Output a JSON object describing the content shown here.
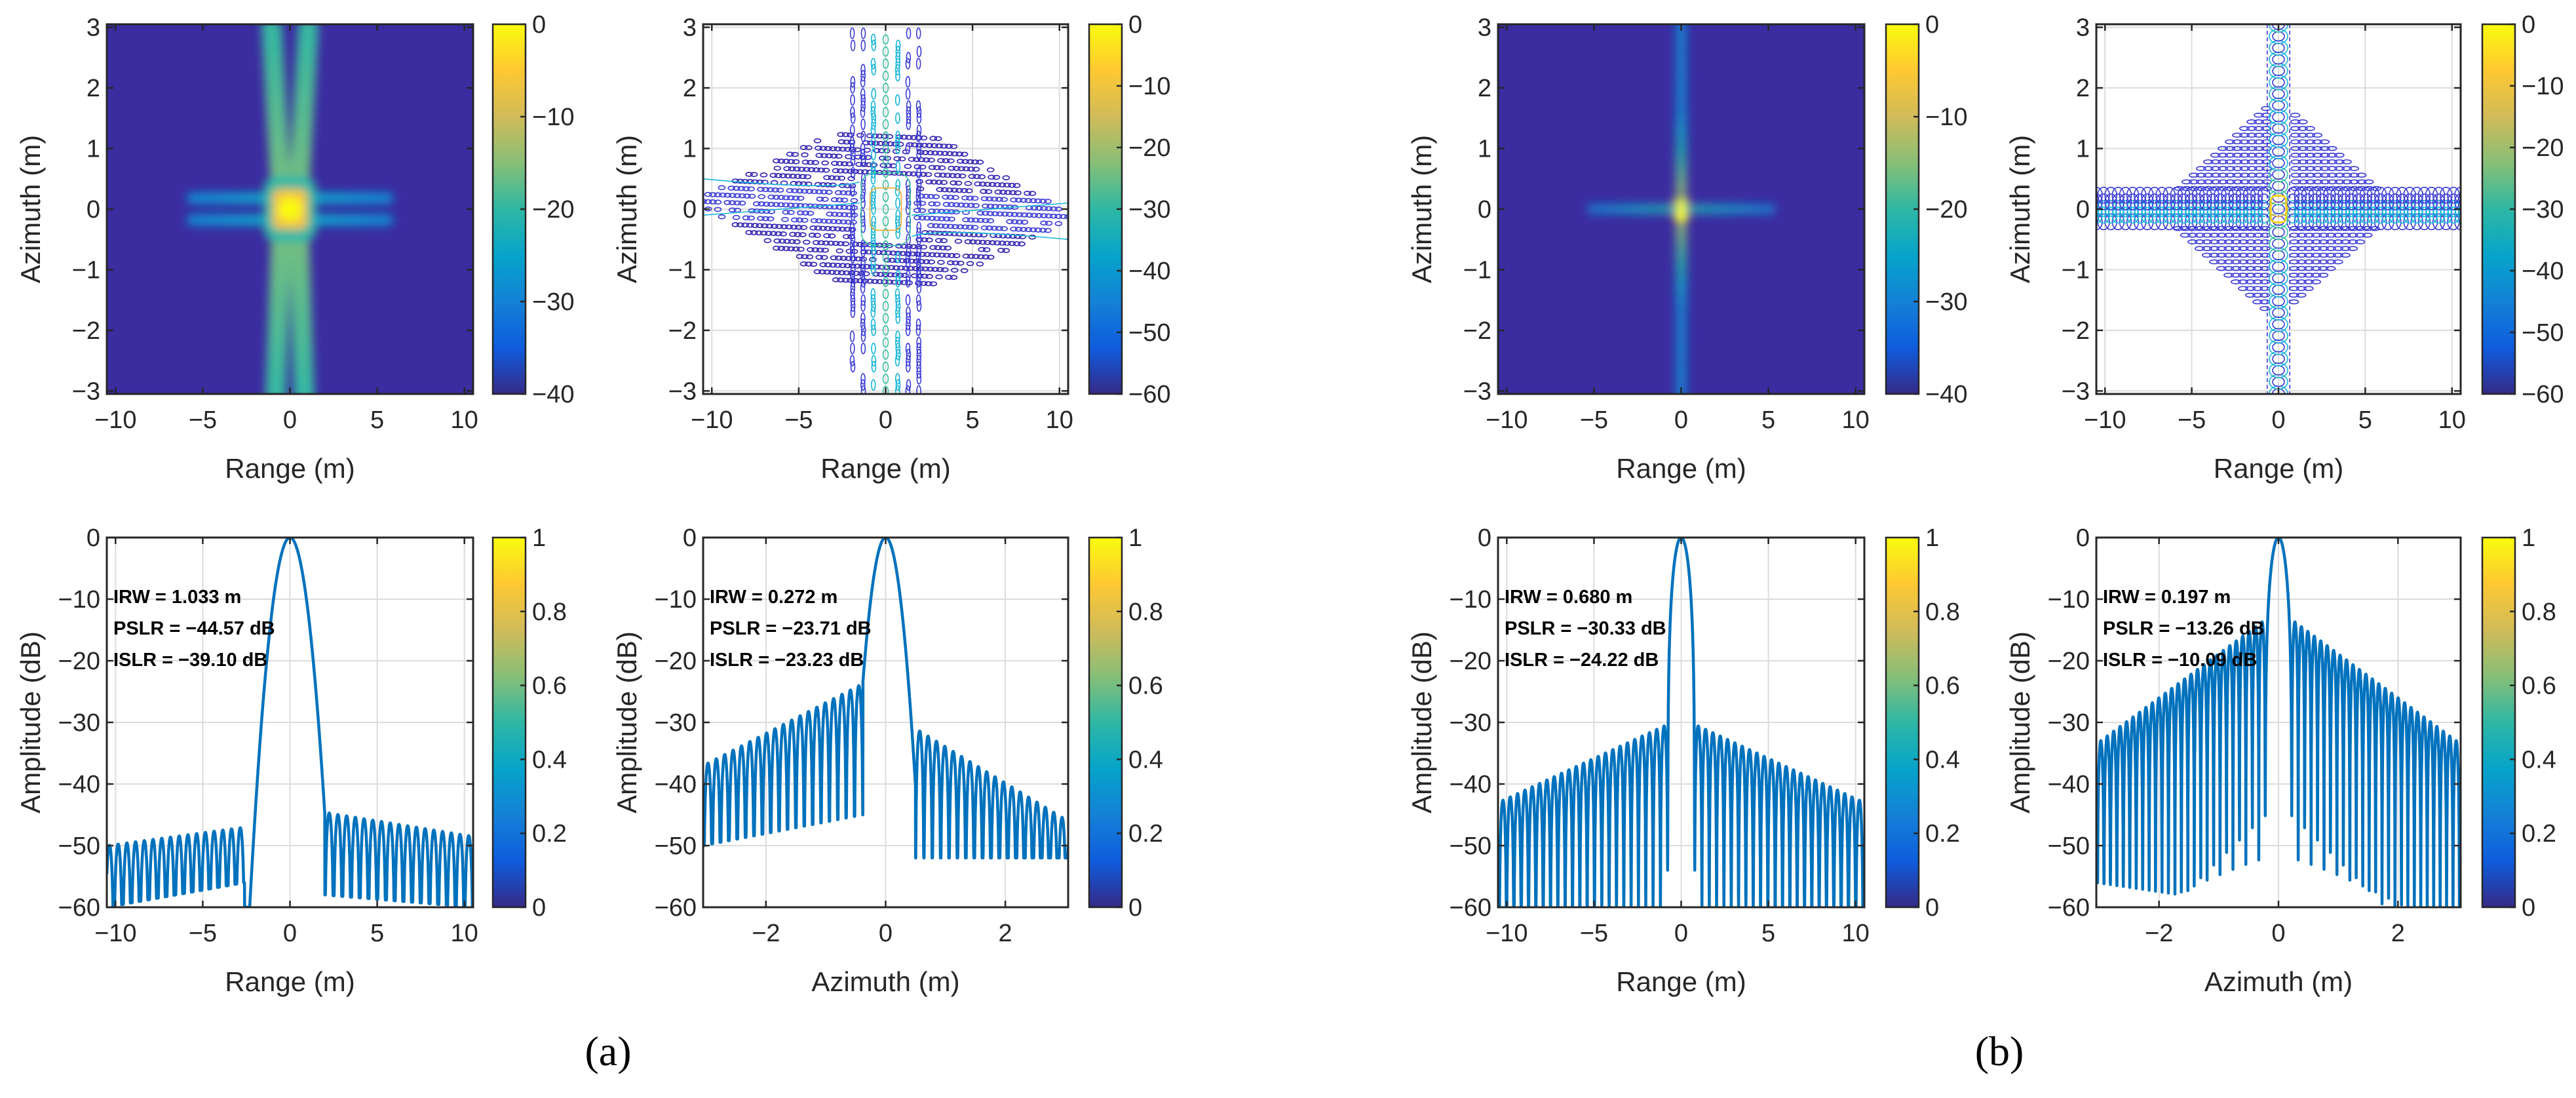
{
  "panel_labels": [
    "(a)",
    "(b)"
  ],
  "colors": {
    "line": "#0072bd",
    "axis": "#262626",
    "grid": "#dcdcdc",
    "heat_bg": "#3b2ca0"
  },
  "parula": [
    "#352a87",
    "#0f5cdd",
    "#1481d6",
    "#06a4ca",
    "#2eb7a4",
    "#87bf77",
    "#d1bb59",
    "#fec832",
    "#f9fb0e"
  ],
  "chart_data": [
    {
      "type": "heatmap",
      "panel": "a",
      "pattern": "a",
      "xlabel": "Range (m)",
      "ylabel": "Azimuth (m)",
      "xlim": [
        -10.5,
        10.5
      ],
      "ylim": [
        -3.05,
        3.05
      ],
      "xticks": [
        "−10",
        "−5",
        "0",
        "5",
        "10"
      ],
      "xtick_values": [
        -10,
        -5,
        0,
        5,
        10
      ],
      "yticks": [
        "−3",
        "−2",
        "−1",
        "0",
        "1",
        "2",
        "3"
      ],
      "ytick_values": [
        -3,
        -2,
        -1,
        0,
        1,
        2,
        3
      ],
      "colorbar": {
        "range": [
          -40,
          0
        ],
        "ticks": [
          "0",
          "−10",
          "−20",
          "−30",
          "−40"
        ],
        "tick_values": [
          0,
          -10,
          -20,
          -30,
          -40
        ]
      }
    },
    {
      "type": "contour",
      "panel": "a",
      "pattern": "a",
      "xlabel": "Range (m)",
      "ylabel": "Azimuth (m)",
      "xlim": [
        -10.5,
        10.5
      ],
      "ylim": [
        -3.05,
        3.05
      ],
      "xticks": [
        "−10",
        "−5",
        "0",
        "5",
        "10"
      ],
      "xtick_values": [
        -10,
        -5,
        0,
        5,
        10
      ],
      "yticks": [
        "−3",
        "−2",
        "−1",
        "0",
        "1",
        "2",
        "3"
      ],
      "ytick_values": [
        -3,
        -2,
        -1,
        0,
        1,
        2,
        3
      ],
      "colorbar": {
        "range": [
          -60,
          0
        ],
        "ticks": [
          "0",
          "−10",
          "−20",
          "−30",
          "−40",
          "−50",
          "−60"
        ],
        "tick_values": [
          0,
          -10,
          -20,
          -30,
          -40,
          -50,
          -60
        ]
      }
    },
    {
      "type": "heatmap",
      "panel": "b",
      "pattern": "b",
      "xlabel": "Range (m)",
      "ylabel": "Azimuth (m)",
      "xlim": [
        -10.5,
        10.5
      ],
      "ylim": [
        -3.05,
        3.05
      ],
      "xticks": [
        "−10",
        "−5",
        "0",
        "5",
        "10"
      ],
      "xtick_values": [
        -10,
        -5,
        0,
        5,
        10
      ],
      "yticks": [
        "−3",
        "−2",
        "−1",
        "0",
        "1",
        "2",
        "3"
      ],
      "ytick_values": [
        -3,
        -2,
        -1,
        0,
        1,
        2,
        3
      ],
      "colorbar": {
        "range": [
          -40,
          0
        ],
        "ticks": [
          "0",
          "−10",
          "−20",
          "−30",
          "−40"
        ],
        "tick_values": [
          0,
          -10,
          -20,
          -30,
          -40
        ]
      }
    },
    {
      "type": "contour",
      "panel": "b",
      "pattern": "b",
      "xlabel": "Range (m)",
      "ylabel": "Azimuth (m)",
      "xlim": [
        -10.5,
        10.5
      ],
      "ylim": [
        -3.05,
        3.05
      ],
      "xticks": [
        "−10",
        "−5",
        "0",
        "5",
        "10"
      ],
      "xtick_values": [
        -10,
        -5,
        0,
        5,
        10
      ],
      "yticks": [
        "−3",
        "−2",
        "−1",
        "0",
        "1",
        "2",
        "3"
      ],
      "ytick_values": [
        -3,
        -2,
        -1,
        0,
        1,
        2,
        3
      ],
      "colorbar": {
        "range": [
          -60,
          0
        ],
        "ticks": [
          "0",
          "−10",
          "−20",
          "−30",
          "−40",
          "−50",
          "−60"
        ],
        "tick_values": [
          0,
          -10,
          -20,
          -30,
          -40,
          -50,
          -60
        ]
      }
    },
    {
      "type": "line",
      "panel": "a",
      "xlabel": "Range (m)",
      "ylabel": "Amplitude (dB)",
      "xlim": [
        -10.5,
        10.5
      ],
      "ylim": [
        -60,
        0
      ],
      "xticks": [
        "−10",
        "−5",
        "0",
        "5",
        "10"
      ],
      "xtick_values": [
        -10,
        -5,
        0,
        5,
        10
      ],
      "yticks": [
        "0",
        "−10",
        "−20",
        "−30",
        "−40",
        "−50",
        "−60"
      ],
      "ytick_values": [
        0,
        -10,
        -20,
        -30,
        -40,
        -50,
        -60
      ],
      "colorbar": {
        "range": [
          0,
          1
        ],
        "ticks": [
          "1",
          "0.8",
          "0.6",
          "0.4",
          "0.2",
          "0"
        ],
        "tick_values": [
          1,
          0.8,
          0.6,
          0.4,
          0.2,
          0
        ]
      },
      "annotations": [
        "IRW  = 1.033 m",
        "PSLR = −44.57 dB",
        "ISLR  = −39.10 dB"
      ],
      "profile": {
        "irw": 1.033,
        "shape": "gaussian",
        "edge_left": 2.6,
        "edge_right": 2.0,
        "period": 0.5,
        "left_env": [
          -47,
          -50
        ],
        "right_env": [
          -44.6,
          -48.5
        ],
        "left_floor": [
          -56,
          -60
        ],
        "right_floor": [
          -58,
          -60
        ]
      }
    },
    {
      "type": "line",
      "panel": "a",
      "xlabel": "Azimuth (m)",
      "ylabel": "Amplitude (dB)",
      "xlim": [
        -3.05,
        3.05
      ],
      "ylim": [
        -60,
        0
      ],
      "xticks": [
        "−2",
        "0",
        "2"
      ],
      "xtick_values": [
        -2,
        0,
        2
      ],
      "yticks": [
        "0",
        "−10",
        "−20",
        "−30",
        "−40",
        "−50",
        "−60"
      ],
      "ytick_values": [
        0,
        -10,
        -20,
        -30,
        -40,
        -50,
        -60
      ],
      "colorbar": {
        "range": [
          0,
          1
        ],
        "ticks": [
          "1",
          "0.8",
          "0.6",
          "0.4",
          "0.2",
          "0"
        ],
        "tick_values": [
          1,
          0.8,
          0.6,
          0.4,
          0.2,
          0
        ]
      },
      "annotations": [
        "IRW  = 0.272 m",
        "PSLR = −23.71 dB",
        "ISLR  = −23.23 dB"
      ],
      "profile": {
        "irw": 0.272,
        "shape": "gaussian",
        "edge_left": 0.38,
        "edge_right": 0.5,
        "period": 0.14,
        "left_env": [
          -23.7,
          -37
        ],
        "right_env": [
          -31,
          -46
        ],
        "left_floor": [
          -45,
          -50
        ],
        "right_floor": [
          -52,
          -52
        ]
      }
    },
    {
      "type": "line",
      "panel": "b",
      "xlabel": "Range (m)",
      "ylabel": "Amplitude (dB)",
      "xlim": [
        -10.5,
        10.5
      ],
      "ylim": [
        -60,
        0
      ],
      "xticks": [
        "−10",
        "−5",
        "0",
        "5",
        "10"
      ],
      "xtick_values": [
        -10,
        -5,
        0,
        5,
        10
      ],
      "yticks": [
        "0",
        "−10",
        "−20",
        "−30",
        "−40",
        "−50",
        "−60"
      ],
      "ytick_values": [
        0,
        -10,
        -20,
        -30,
        -40,
        -50,
        -60
      ],
      "colorbar": {
        "range": [
          0,
          1
        ],
        "ticks": [
          "1",
          "0.8",
          "0.6",
          "0.4",
          "0.2",
          "0"
        ],
        "tick_values": [
          1,
          0.8,
          0.6,
          0.4,
          0.2,
          0
        ]
      },
      "annotations": [
        "IRW  = 0.680 m",
        "PSLR = −30.33 dB",
        "ISLR  = −24.22 dB"
      ],
      "profile": {
        "irw": 0.68,
        "shape": "sinc",
        "edge_left": 0.77,
        "edge_right": 0.77,
        "period": 0.42,
        "left_env": [
          -30.3,
          -43
        ],
        "right_env": [
          -30.3,
          -43
        ],
        "left_floor": [
          -60,
          -60
        ],
        "right_floor": [
          -60,
          -60
        ]
      }
    },
    {
      "type": "line",
      "panel": "b",
      "xlabel": "Azimuth (m)",
      "ylabel": "Amplitude (dB)",
      "xlim": [
        -3.05,
        3.05
      ],
      "ylim": [
        -60,
        0
      ],
      "xticks": [
        "−2",
        "0",
        "2"
      ],
      "xtick_values": [
        -2,
        0,
        2
      ],
      "yticks": [
        "0",
        "−10",
        "−20",
        "−30",
        "−40",
        "−50",
        "−60"
      ],
      "ytick_values": [
        0,
        -10,
        -20,
        -30,
        -40,
        -50,
        -60
      ],
      "colorbar": {
        "range": [
          0,
          1
        ],
        "ticks": [
          "1",
          "0.8",
          "0.6",
          "0.4",
          "0.2",
          "0"
        ],
        "tick_values": [
          1,
          0.8,
          0.6,
          0.4,
          0.2,
          0
        ]
      },
      "annotations": [
        "IRW  = 0.197 m",
        "PSLR = −13.26 dB",
        "ISLR  = −10.09 dB"
      ],
      "profile": {
        "irw": 0.197,
        "shape": "sinc",
        "edge_left": 0.222,
        "edge_right": 0.222,
        "period": 0.108,
        "left_env": [
          -13.3,
          -33.5
        ],
        "right_env": [
          -13.3,
          -33.5
        ],
        "left_floor": [
          -60,
          -56
        ],
        "right_floor": [
          -60,
          -60
        ]
      }
    }
  ]
}
